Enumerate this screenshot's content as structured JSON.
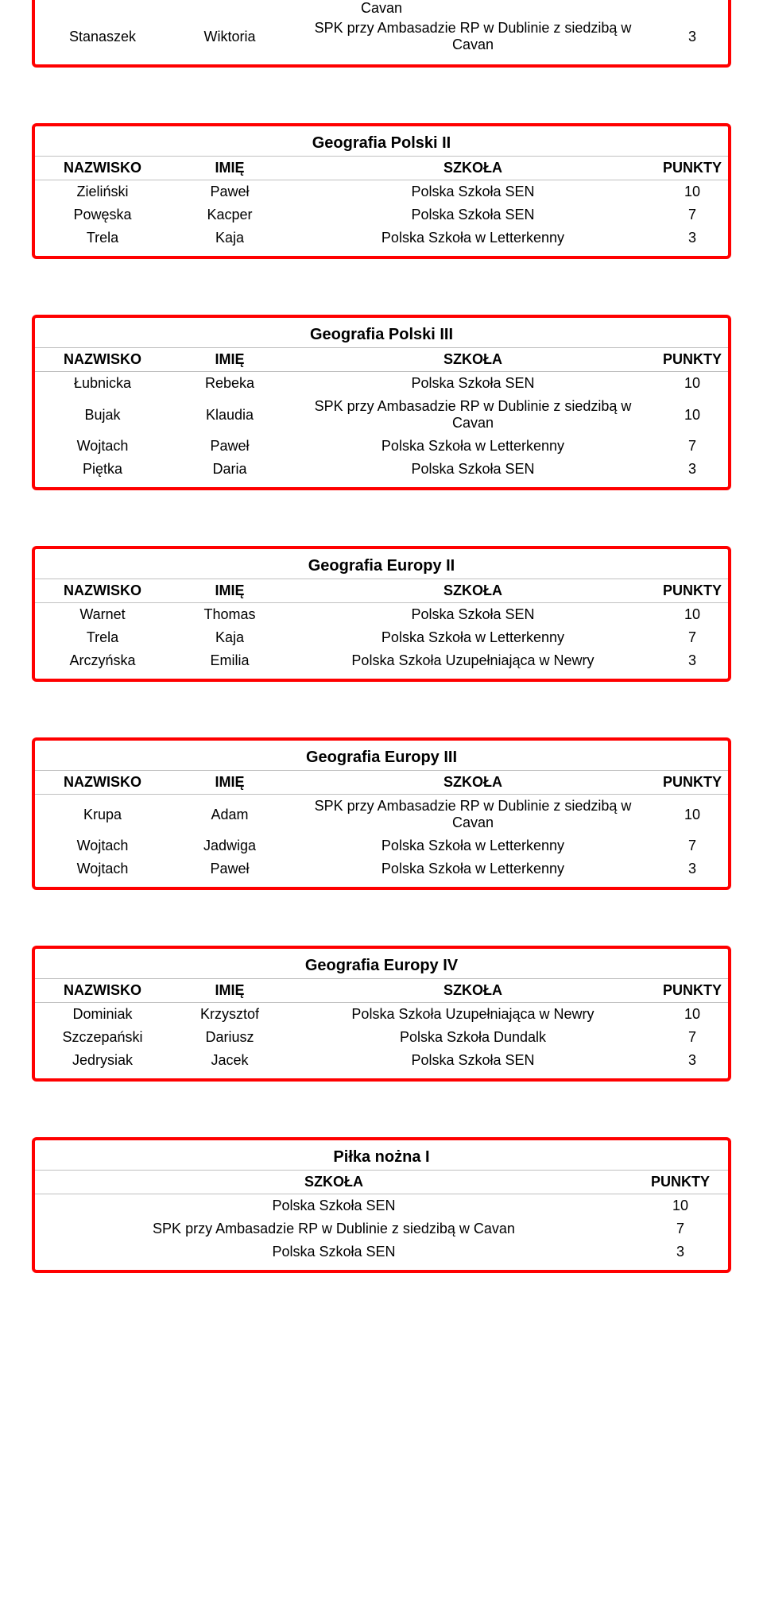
{
  "top_fragment": {
    "cavan_word": "Cavan",
    "row": {
      "last": "Stanaszek",
      "first": "Wiktoria",
      "school": "SPK przy Ambasadzie RP w Dublinie z siedzibą w Cavan",
      "points": "3"
    }
  },
  "headers4": {
    "last": "NAZWISKO",
    "first": "IMIĘ",
    "school": "SZKOŁA",
    "points": "PUNKTY"
  },
  "headers2": {
    "school": "SZKOŁA",
    "points": "PUNKTY"
  },
  "sections": [
    {
      "title": "Geografia Polski II",
      "type": "four",
      "rows": [
        {
          "last": "Zieliński",
          "first": "Paweł",
          "school": "Polska Szkoła SEN",
          "points": "10"
        },
        {
          "last": "Powęska",
          "first": "Kacper",
          "school": "Polska Szkoła SEN",
          "points": "7"
        },
        {
          "last": "Trela",
          "first": "Kaja",
          "school": "Polska Szkoła w Letterkenny",
          "points": "3"
        }
      ]
    },
    {
      "title": "Geografia Polski III",
      "type": "four",
      "rows": [
        {
          "last": "Łubnicka",
          "first": "Rebeka",
          "school": "Polska Szkoła SEN",
          "points": "10"
        },
        {
          "last": "Bujak",
          "first": "Klaudia",
          "school": "SPK przy Ambasadzie RP w Dublinie z siedzibą w Cavan",
          "points": "10"
        },
        {
          "last": "Wojtach",
          "first": "Paweł",
          "school": "Polska Szkoła w Letterkenny",
          "points": "7"
        },
        {
          "last": "Piętka",
          "first": "Daria",
          "school": "Polska Szkoła SEN",
          "points": "3"
        }
      ]
    },
    {
      "title": "Geografia Europy II",
      "type": "four",
      "rows": [
        {
          "last": "Warnet",
          "first": "Thomas",
          "school": "Polska Szkoła SEN",
          "points": "10"
        },
        {
          "last": "Trela",
          "first": "Kaja",
          "school": "Polska Szkoła w Letterkenny",
          "points": "7"
        },
        {
          "last": "Arczyńska",
          "first": "Emilia",
          "school": "Polska Szkoła Uzupełniająca w Newry",
          "points": "3"
        }
      ]
    },
    {
      "title": "Geografia Europy III",
      "type": "four",
      "rows": [
        {
          "last": "Krupa",
          "first": "Adam",
          "school": "SPK przy Ambasadzie RP w Dublinie z siedzibą w Cavan",
          "points": "10"
        },
        {
          "last": "Wojtach",
          "first": "Jadwiga",
          "school": "Polska Szkoła w Letterkenny",
          "points": "7"
        },
        {
          "last": "Wojtach",
          "first": "Paweł",
          "school": "Polska Szkoła w Letterkenny",
          "points": "3"
        }
      ]
    },
    {
      "title": "Geografia Europy IV",
      "type": "four",
      "rows": [
        {
          "last": "Dominiak",
          "first": "Krzysztof",
          "school": "Polska Szkoła Uzupełniająca w Newry",
          "points": "10"
        },
        {
          "last": "Szczepański",
          "first": "Dariusz",
          "school": "Polska Szkoła Dundalk",
          "points": "7"
        },
        {
          "last": "Jedrysiak",
          "first": "Jacek",
          "school": "Polska Szkoła SEN",
          "points": "3"
        }
      ]
    },
    {
      "title": "Piłka nożna I",
      "type": "two",
      "rows": [
        {
          "school": "Polska Szkoła SEN",
          "points": "10"
        },
        {
          "school": "SPK przy Ambasadzie RP w Dublinie z siedzibą w Cavan",
          "points": "7"
        },
        {
          "school": "Polska Szkoła SEN",
          "points": "3"
        }
      ]
    }
  ]
}
